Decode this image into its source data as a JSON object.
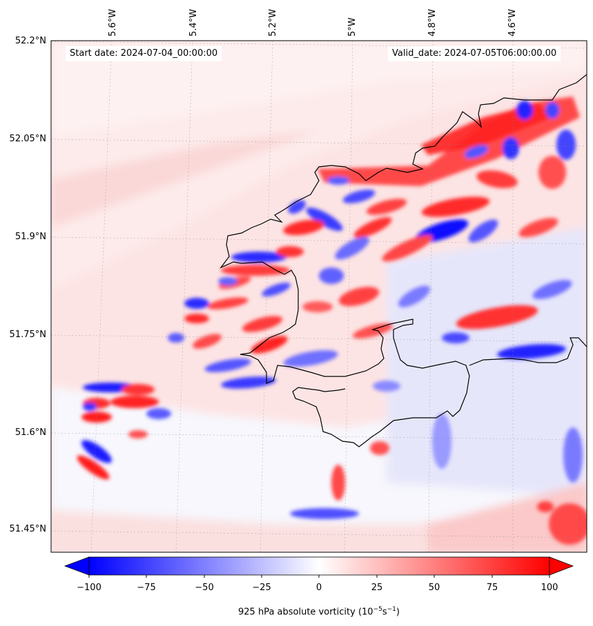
{
  "annotations": {
    "start": "Start date: 2024-07-04_00:00:00",
    "valid": "Valid_date: 2024-07-05T06:00:00.00"
  },
  "axes": {
    "lon_ticks": [
      "5.6°W",
      "5.4°W",
      "5.2°W",
      "5°W",
      "4.8°W",
      "4.6°W"
    ],
    "lat_ticks": [
      "52.2°N",
      "52.05°N",
      "51.9°N",
      "51.75°N",
      "51.6°N",
      "51.45°N"
    ]
  },
  "colorbar": {
    "label": "925 hPa absolute vorticity (10",
    "label_exp1": "−5",
    "label_mid": "s",
    "label_exp2": "−1",
    "label_end": ")",
    "ticks": [
      "−100",
      "−75",
      "−50",
      "−25",
      "0",
      "25",
      "50",
      "75",
      "100"
    ],
    "range": [
      -100,
      100
    ],
    "neg_color": "#0000ff",
    "pos_color": "#ff0000"
  },
  "chart_data": {
    "type": "heatmap",
    "variable": "925 hPa absolute vorticity",
    "units": "10^-5 s^-1",
    "colormap": "bwr",
    "vmin": -100,
    "vmax": 100,
    "extend": "both",
    "lon_range": [
      "5.7°W",
      "4.5°W"
    ],
    "lat_range": [
      "51.42°N",
      "52.2°N"
    ],
    "coastline": true,
    "gridlines": true
  }
}
